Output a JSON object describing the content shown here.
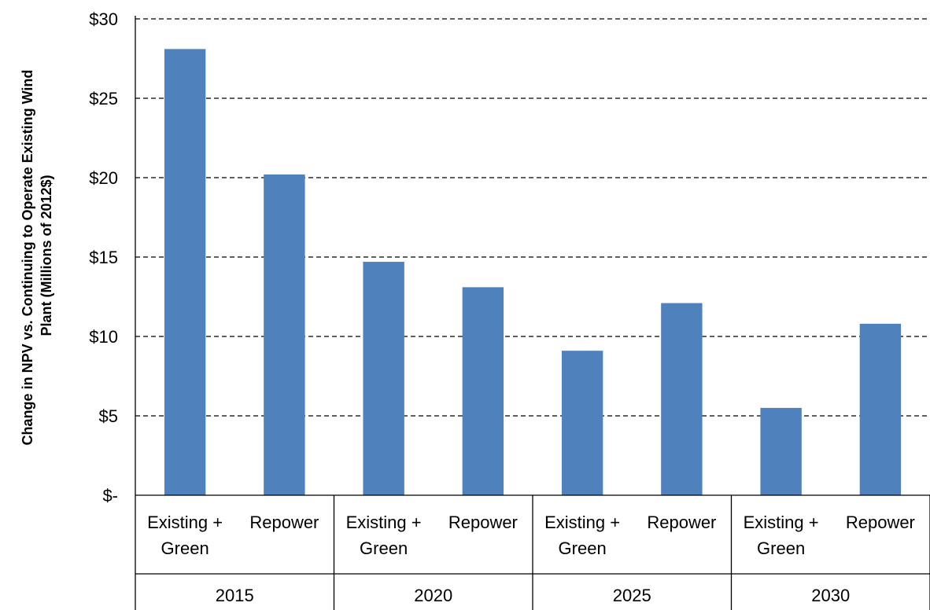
{
  "chart_data": {
    "type": "bar",
    "title": "",
    "ylabel": "Change in NPV vs. Continuing to Operate Existing Wind Plant (Millions of 2012$)",
    "ylabel_lines": [
      "Change in NPV vs. Continuing to Operate Existing Wind",
      "Plant (Millions of 2012$)"
    ],
    "xlabel": "",
    "ylim": [
      0,
      30
    ],
    "yticks": [
      0,
      5,
      10,
      15,
      20,
      25,
      30
    ],
    "ytick_labels": [
      "$-",
      "$5",
      "$10",
      "$15",
      "$20",
      "$25",
      "$30"
    ],
    "grid": true,
    "legend": "none",
    "bar_color": "#4f81bd",
    "groups": [
      {
        "label": "2015",
        "categories": [
          {
            "label_lines": [
              "Existing +",
              "Green"
            ],
            "value": 28.1
          },
          {
            "label_lines": [
              "Repower"
            ],
            "value": 20.2
          }
        ]
      },
      {
        "label": "2020",
        "categories": [
          {
            "label_lines": [
              "Existing +",
              "Green"
            ],
            "value": 14.7
          },
          {
            "label_lines": [
              "Repower"
            ],
            "value": 13.1
          }
        ]
      },
      {
        "label": "2025",
        "categories": [
          {
            "label_lines": [
              "Existing +",
              "Green"
            ],
            "value": 9.1
          },
          {
            "label_lines": [
              "Repower"
            ],
            "value": 12.1
          }
        ]
      },
      {
        "label": "2030",
        "categories": [
          {
            "label_lines": [
              "Existing +",
              "Green"
            ],
            "value": 5.5
          },
          {
            "label_lines": [
              "Repower"
            ],
            "value": 10.8
          }
        ]
      }
    ]
  }
}
